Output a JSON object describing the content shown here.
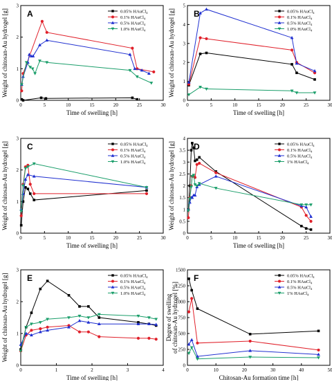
{
  "colors": {
    "s1": "#000000",
    "s2": "#e0202a",
    "s3": "#1f2fd0",
    "s4": "#1a9e6a"
  },
  "chart_data": [
    {
      "type": "line",
      "panel": "A",
      "xlabel": "Time of swelling [h]",
      "ylabel": "Weight of chitosan-Au hydrogel [g]",
      "xlim": [
        0,
        30
      ],
      "ylim": [
        0,
        3
      ],
      "xticks": [
        0,
        5,
        10,
        15,
        20,
        25,
        30
      ],
      "yticks": [
        0,
        1,
        2,
        3
      ],
      "series": [
        {
          "name": "0.05% HAuCl4",
          "marker": "square",
          "points": [
            [
              0.2,
              0.03
            ],
            [
              0.5,
              0.0
            ],
            [
              4.3,
              0.08
            ],
            [
              5.3,
              0.06
            ],
            [
              23.5,
              0.08
            ],
            [
              24.5,
              0.03
            ]
          ]
        },
        {
          "name": "0.1% HAuCl4",
          "marker": "circle",
          "points": [
            [
              0.2,
              0.3
            ],
            [
              0.5,
              0.85
            ],
            [
              4.5,
              2.5
            ],
            [
              5.5,
              2.15
            ],
            [
              23.5,
              1.65
            ],
            [
              24.5,
              1.0
            ],
            [
              28.0,
              0.9
            ]
          ]
        },
        {
          "name": "0.5% HAuCl4",
          "marker": "triangle-up",
          "points": [
            [
              0.2,
              0.5
            ],
            [
              0.5,
              0.75
            ],
            [
              1.5,
              1.2
            ],
            [
              1.8,
              1.45
            ],
            [
              2.2,
              1.4
            ],
            [
              2.6,
              1.4
            ],
            [
              4.0,
              1.75
            ],
            [
              5.5,
              1.9
            ],
            [
              23.0,
              1.45
            ],
            [
              24.0,
              1.0
            ],
            [
              25.5,
              0.95
            ],
            [
              27.0,
              0.85
            ]
          ]
        },
        {
          "name": "1.0% HAuCl4",
          "marker": "triangle-down",
          "points": [
            [
              0.2,
              0.5
            ],
            [
              1.2,
              1.2
            ],
            [
              2.0,
              1.05
            ],
            [
              2.5,
              1.0
            ],
            [
              3.0,
              0.85
            ],
            [
              4.0,
              1.25
            ],
            [
              5.5,
              1.2
            ],
            [
              23.0,
              0.95
            ],
            [
              24.5,
              0.75
            ],
            [
              27.5,
              0.55
            ]
          ]
        }
      ]
    },
    {
      "type": "line",
      "panel": "B",
      "xlabel": "Time of swelling [h]",
      "ylabel": "Weight of chitosan-Au hydrogel [g]",
      "xlim": [
        0,
        30
      ],
      "ylim": [
        0,
        5
      ],
      "xticks": [
        0,
        5,
        10,
        15,
        20,
        25,
        30
      ],
      "yticks": [
        0,
        1,
        2,
        3,
        4,
        5
      ],
      "series": [
        {
          "name": "0.05% HAuCl4",
          "marker": "square",
          "points": [
            [
              0.3,
              0.8
            ],
            [
              2.7,
              2.45
            ],
            [
              4.0,
              2.5
            ],
            [
              22.0,
              1.9
            ],
            [
              23.0,
              1.45
            ],
            [
              26.8,
              1.1
            ]
          ]
        },
        {
          "name": "0.1% HAuCl4",
          "marker": "circle",
          "points": [
            [
              0.3,
              0.85
            ],
            [
              2.7,
              3.3
            ],
            [
              4.0,
              3.25
            ],
            [
              22.0,
              2.65
            ],
            [
              23.0,
              2.0
            ],
            [
              26.8,
              1.45
            ]
          ]
        },
        {
          "name": "0.5% HAuCl4",
          "marker": "triangle-up",
          "points": [
            [
              0.3,
              0.95
            ],
            [
              2.7,
              4.6
            ],
            [
              4.0,
              4.8
            ],
            [
              22.0,
              3.3
            ],
            [
              23.0,
              1.95
            ],
            [
              26.8,
              1.55
            ]
          ]
        },
        {
          "name": "1.0% HAuCl4",
          "marker": "triangle-down",
          "points": [
            [
              0.3,
              0.3
            ],
            [
              2.7,
              0.7
            ],
            [
              4.0,
              0.6
            ],
            [
              22.0,
              0.5
            ],
            [
              23.0,
              0.4
            ],
            [
              26.8,
              0.4
            ]
          ]
        }
      ]
    },
    {
      "type": "line",
      "panel": "C",
      "xlabel": "Time of swelling [h]",
      "ylabel": "Weight of chitosan-Au hydrogel [g]",
      "xlim": [
        0,
        30
      ],
      "ylim": [
        0,
        3
      ],
      "xticks": [
        0,
        5,
        10,
        15,
        20,
        25,
        30
      ],
      "yticks": [
        0,
        1,
        2,
        3
      ],
      "series": [
        {
          "name": "0.05% HAuCl4",
          "marker": "square",
          "points": [
            [
              0.1,
              0.25
            ],
            [
              0.5,
              1.0
            ],
            [
              1.0,
              1.45
            ],
            [
              1.5,
              1.4
            ],
            [
              2.0,
              1.25
            ],
            [
              2.8,
              1.05
            ],
            [
              26.5,
              1.35
            ]
          ]
        },
        {
          "name": "0.1% HAuCl4",
          "marker": "circle",
          "points": [
            [
              0.1,
              0.55
            ],
            [
              0.5,
              1.55
            ],
            [
              1.0,
              2.1
            ],
            [
              1.5,
              2.15
            ],
            [
              2.0,
              1.55
            ],
            [
              2.8,
              1.25
            ],
            [
              26.5,
              1.25
            ]
          ]
        },
        {
          "name": "0.5% HAuCl4",
          "marker": "triangle-up",
          "points": [
            [
              0.1,
              0.75
            ],
            [
              0.5,
              1.25
            ],
            [
              1.0,
              1.7
            ],
            [
              1.5,
              1.85
            ],
            [
              2.8,
              1.8
            ],
            [
              26.5,
              1.45
            ]
          ]
        },
        {
          "name": "1.0% HAuCl4",
          "marker": "triangle-down",
          "points": [
            [
              0.1,
              0.7
            ],
            [
              0.5,
              1.5
            ],
            [
              1.0,
              2.05
            ],
            [
              1.5,
              2.1
            ],
            [
              2.8,
              2.2
            ],
            [
              26.5,
              1.45
            ]
          ]
        }
      ]
    },
    {
      "type": "line",
      "panel": "D",
      "xlabel": "Time of swelling [h]",
      "ylabel": "Weight of chitosan-Au hydrogel [g]",
      "xlim": [
        0,
        30
      ],
      "ylim": [
        0,
        4
      ],
      "xticks": [
        0,
        5,
        10,
        15,
        20,
        25,
        30
      ],
      "yticks": [
        0,
        0.5,
        1.0,
        1.5,
        2.0,
        2.5,
        3.0,
        3.5,
        4.0
      ],
      "series": [
        {
          "name": "0.05% HAuCl4",
          "marker": "square",
          "points": [
            [
              0.2,
              1.0
            ],
            [
              0.5,
              2.0
            ],
            [
              0.8,
              3.5
            ],
            [
              1.0,
              3.8
            ],
            [
              1.3,
              3.6
            ],
            [
              1.6,
              3.05
            ],
            [
              2.0,
              3.1
            ],
            [
              2.5,
              3.2
            ],
            [
              6.0,
              2.6
            ],
            [
              24.0,
              0.3
            ],
            [
              25.0,
              0.2
            ],
            [
              26.0,
              0.15
            ]
          ]
        },
        {
          "name": "0.1% HAuCl4",
          "marker": "circle",
          "points": [
            [
              0.2,
              0.65
            ],
            [
              0.5,
              1.5
            ],
            [
              0.8,
              2.0
            ],
            [
              1.0,
              2.4
            ],
            [
              1.3,
              2.4
            ],
            [
              1.6,
              2.35
            ],
            [
              2.0,
              2.9
            ],
            [
              2.5,
              2.95
            ],
            [
              6.0,
              2.55
            ],
            [
              24.0,
              1.1
            ],
            [
              25.0,
              0.75
            ],
            [
              26.0,
              0.5
            ]
          ]
        },
        {
          "name": "0.5% HAuCl4",
          "marker": "triangle-up",
          "points": [
            [
              0.2,
              1.0
            ],
            [
              0.5,
              1.3
            ],
            [
              0.8,
              1.5
            ],
            [
              1.0,
              1.5
            ],
            [
              1.3,
              1.6
            ],
            [
              1.6,
              1.6
            ],
            [
              2.0,
              1.95
            ],
            [
              2.5,
              2.05
            ],
            [
              6.0,
              2.4
            ],
            [
              24.0,
              1.15
            ],
            [
              25.0,
              1.1
            ],
            [
              26.0,
              0.7
            ]
          ]
        },
        {
          "name": "1% HAuCl4",
          "marker": "triangle-down",
          "points": [
            [
              0.2,
              0.95
            ],
            [
              0.5,
              1.45
            ],
            [
              0.8,
              1.95
            ],
            [
              1.0,
              2.4
            ],
            [
              1.3,
              2.45
            ],
            [
              1.6,
              2.05
            ],
            [
              2.0,
              2.0
            ],
            [
              2.5,
              2.1
            ],
            [
              6.0,
              1.9
            ],
            [
              24.0,
              1.2
            ],
            [
              25.0,
              1.2
            ],
            [
              26.0,
              1.2
            ]
          ]
        }
      ]
    },
    {
      "type": "line",
      "panel": "E",
      "xlabel": "Time of swelling [h]",
      "ylabel": "Weight of chitosan-Au hydrogel [g]",
      "xlim": [
        0,
        4
      ],
      "ylim": [
        0,
        3
      ],
      "xticks": [
        0,
        1,
        2,
        3,
        4
      ],
      "yticks": [
        0,
        1,
        2,
        3
      ],
      "series": [
        {
          "name": "0.05% HAuCl4",
          "marker": "square",
          "points": [
            [
              0.0,
              0.5
            ],
            [
              0.15,
              1.2
            ],
            [
              0.3,
              1.65
            ],
            [
              0.55,
              2.4
            ],
            [
              0.75,
              2.65
            ],
            [
              1.35,
              2.2
            ],
            [
              1.65,
              1.85
            ],
            [
              1.9,
              1.85
            ],
            [
              2.2,
              1.5
            ],
            [
              3.3,
              1.35
            ],
            [
              3.6,
              1.3
            ],
            [
              3.8,
              1.25
            ]
          ]
        },
        {
          "name": "0.1% HAuCl4",
          "marker": "circle",
          "points": [
            [
              0.0,
              0.45
            ],
            [
              0.15,
              0.95
            ],
            [
              0.3,
              1.1
            ],
            [
              0.55,
              1.15
            ],
            [
              0.75,
              1.2
            ],
            [
              1.35,
              1.25
            ],
            [
              1.65,
              1.05
            ],
            [
              1.9,
              1.05
            ],
            [
              2.2,
              0.9
            ],
            [
              3.3,
              0.85
            ],
            [
              3.6,
              0.85
            ],
            [
              3.8,
              0.82
            ]
          ]
        },
        {
          "name": "0.5% HAuCl4",
          "marker": "triangle-up",
          "points": [
            [
              0.0,
              0.65
            ],
            [
              0.15,
              1.0
            ],
            [
              0.3,
              0.95
            ],
            [
              0.55,
              1.05
            ],
            [
              0.75,
              1.1
            ],
            [
              1.35,
              1.2
            ],
            [
              1.65,
              1.4
            ],
            [
              1.9,
              1.35
            ],
            [
              2.2,
              1.3
            ],
            [
              3.3,
              1.3
            ],
            [
              3.6,
              1.3
            ],
            [
              3.8,
              1.28
            ]
          ]
        },
        {
          "name": "1.0% HAuCl4",
          "marker": "triangle-down",
          "points": [
            [
              0.0,
              0.45
            ],
            [
              0.15,
              1.2
            ],
            [
              0.3,
              1.3
            ],
            [
              0.55,
              1.35
            ],
            [
              0.75,
              1.45
            ],
            [
              1.35,
              1.5
            ],
            [
              1.65,
              1.55
            ],
            [
              1.9,
              1.5
            ],
            [
              2.2,
              1.6
            ],
            [
              3.3,
              1.55
            ],
            [
              3.6,
              1.5
            ],
            [
              3.8,
              1.45
            ]
          ]
        }
      ]
    },
    {
      "type": "line",
      "panel": "F",
      "xlabel": "Chitosan-Au formation time [h]",
      "ylabel": "Degree of swelling of chitosan-Au hydrogel [%]",
      "xlim": [
        0,
        50
      ],
      "ylim": [
        0,
        1500
      ],
      "xticks": [
        0,
        10,
        20,
        30,
        40,
        50
      ],
      "yticks": [
        0,
        250,
        500,
        750,
        1000,
        1250,
        1500
      ],
      "series": [
        {
          "name": "0.05% HAuCl4",
          "marker": "square",
          "points": [
            [
              0.5,
              1360
            ],
            [
              1.5,
              1180
            ],
            [
              3.5,
              890
            ],
            [
              22.0,
              490
            ],
            [
              46.0,
              540
            ]
          ]
        },
        {
          "name": "0.1% HAuCl4",
          "marker": "circle",
          "points": [
            [
              0.5,
              840
            ],
            [
              1.5,
              1050
            ],
            [
              3.5,
              350
            ],
            [
              22.0,
              380
            ],
            [
              46.0,
              240
            ]
          ]
        },
        {
          "name": "0.5% HAuCl4",
          "marker": "triangle-up",
          "points": [
            [
              0.5,
              330
            ],
            [
              1.5,
              400
            ],
            [
              3.5,
              140
            ],
            [
              22.0,
              230
            ],
            [
              46.0,
              170
            ]
          ]
        },
        {
          "name": "1% HAuCl4",
          "marker": "triangle-down",
          "points": [
            [
              0.5,
              190
            ],
            [
              1.5,
              280
            ],
            [
              3.5,
              100
            ],
            [
              22.0,
              130
            ],
            [
              46.0,
              120
            ]
          ]
        }
      ]
    }
  ]
}
